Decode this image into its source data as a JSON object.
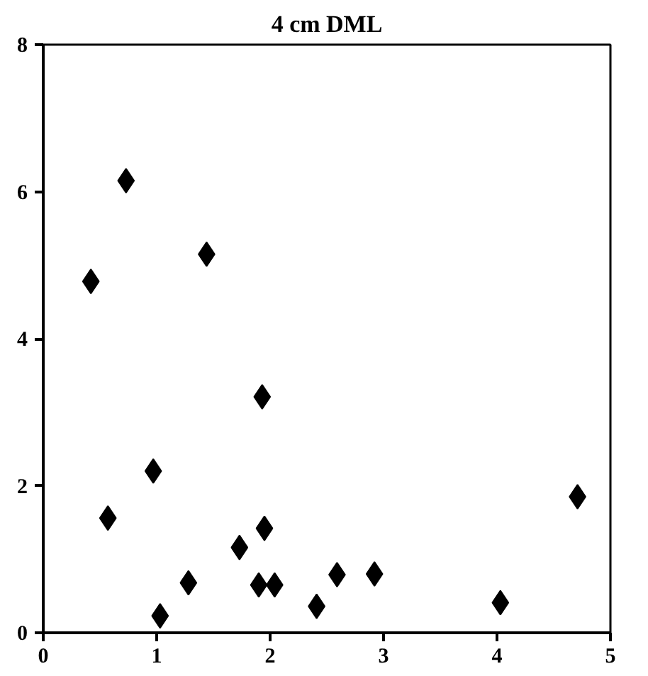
{
  "chart_data": {
    "type": "scatter",
    "title": "4 cm DML",
    "x": [
      0.42,
      0.73,
      1.44,
      1.93,
      0.97,
      0.57,
      1.95,
      1.73,
      1.28,
      1.9,
      2.04,
      1.03,
      2.41,
      2.59,
      2.92,
      4.03,
      4.71
    ],
    "values": [
      4.78,
      6.15,
      5.15,
      3.21,
      2.2,
      1.56,
      1.42,
      1.16,
      0.68,
      0.65,
      0.65,
      0.23,
      0.36,
      0.79,
      0.8,
      0.41,
      1.85
    ],
    "color": "#000000",
    "marker": "diamond",
    "xlim": [
      0,
      5
    ],
    "xticks": [
      0,
      1,
      2,
      3,
      4,
      5
    ],
    "ylim": [
      0,
      8
    ],
    "yticks": [
      0,
      2,
      4,
      6,
      8
    ],
    "grid": false
  }
}
